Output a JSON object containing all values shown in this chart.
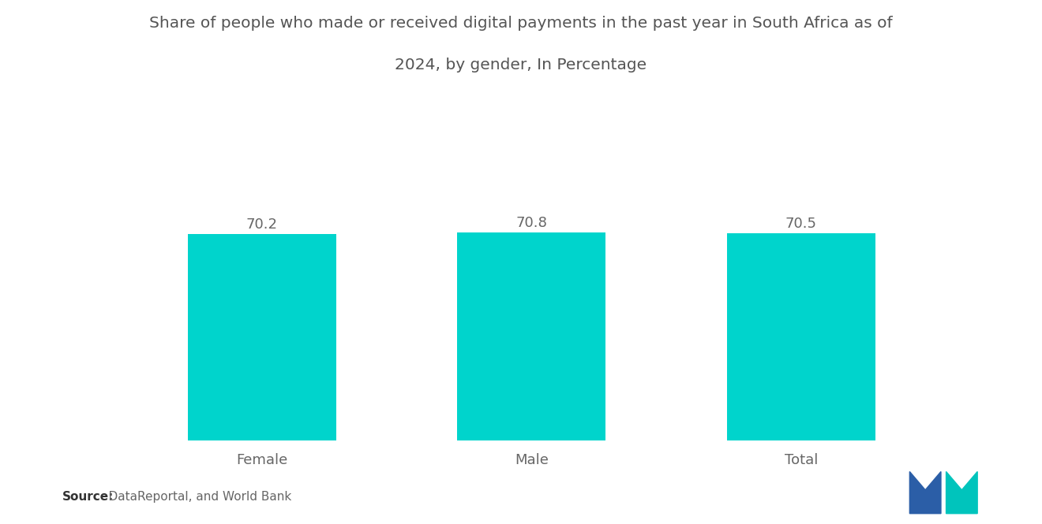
{
  "title_line1": "Share of people who made or received digital payments in the past year in South Africa as of",
  "title_line2": "2024, by gender, In Percentage",
  "categories": [
    "Female",
    "Male",
    "Total"
  ],
  "values": [
    70.2,
    70.8,
    70.5
  ],
  "bar_color": "#00D4CC",
  "value_labels": [
    "70.2",
    "70.8",
    "70.5"
  ],
  "source_bold": "Source:",
  "source_rest": "  DataReportal, and World Bank",
  "background_color": "#ffffff",
  "title_fontsize": 14.5,
  "label_fontsize": 13,
  "value_fontsize": 13,
  "source_fontsize": 11,
  "ylim": [
    0,
    100
  ],
  "bar_width": 0.55,
  "logo_blue": "#2B5EA7",
  "logo_teal": "#00C4BC"
}
